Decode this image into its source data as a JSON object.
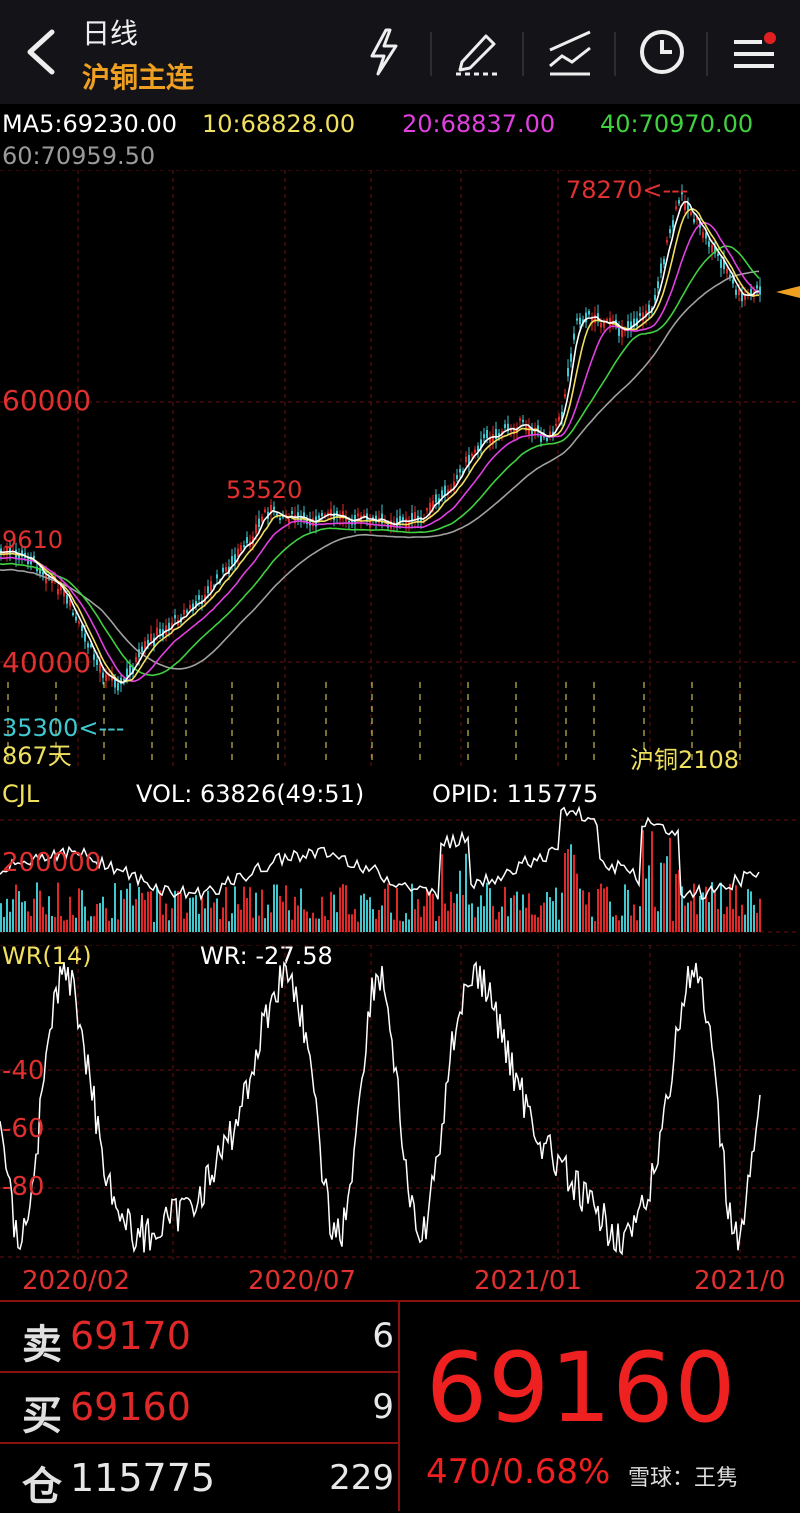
{
  "header": {
    "period": "日线",
    "instrument": "沪铜主连",
    "icons": [
      "back-arrow-icon",
      "lightning-icon",
      "draw-pen-icon",
      "line-tool-icon",
      "clock-icon",
      "menu-icon"
    ]
  },
  "ma_line": {
    "ma5": "MA5:69230.00",
    "ma10": "10:68828.00",
    "ma20": "20:68837.00",
    "ma40": "40:70970.00",
    "ma60": "60:70959.50"
  },
  "main_chart": {
    "high_label": "78270<---",
    "peak_label": "53520",
    "left_label": "9610",
    "level_60000": "60000",
    "level_40000": "40000",
    "low_label": "35300<---",
    "days_label": "867天",
    "contract_label": "沪铜2108"
  },
  "volume": {
    "title": "CJL",
    "vol_text": "VOL: 63826(49:51)",
    "opid_text": "OPID: 115775",
    "axis_label": "200000"
  },
  "wr": {
    "title": "WR(14)",
    "value_text": "WR: -27.58",
    "axis_40": "-40",
    "axis_60": "-60",
    "axis_80": "-80"
  },
  "dates": [
    "2020/02",
    "2020/07",
    "2021/01",
    "2021/0"
  ],
  "orderbook": {
    "sell_label": "卖",
    "sell_price": "69170",
    "sell_qty": "6",
    "buy_label": "买",
    "buy_price": "69160",
    "buy_qty": "9",
    "oi_label": "仓",
    "oi_value": "115775",
    "oi_change": "229",
    "last_price": "69160",
    "change": "470/0.68%",
    "watermark": "雪球：王隽"
  },
  "colors": {
    "up": "#e02828",
    "down": "#40c8d0",
    "ma5": "#ffffff",
    "ma10": "#f0e060",
    "ma20": "#e040e0",
    "ma40": "#40d040",
    "ma60": "#a0a0a0",
    "accent": "#f0a020"
  }
}
